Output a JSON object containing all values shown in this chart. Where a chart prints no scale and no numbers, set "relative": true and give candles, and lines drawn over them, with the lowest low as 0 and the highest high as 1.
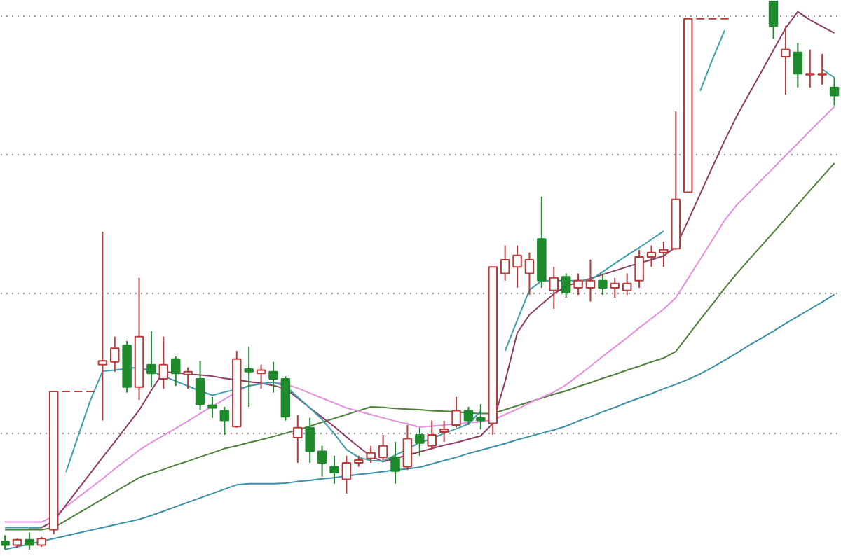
{
  "chart_data": {
    "type": "candlestick",
    "relative": true,
    "grid": "y",
    "categories": [
      null,
      null,
      null,
      null,
      null,
      null,
      null,
      null,
      null,
      null,
      null,
      null,
      null,
      null,
      null,
      null,
      null,
      null,
      null,
      null,
      null,
      null,
      null,
      null,
      null,
      null,
      null,
      null,
      null,
      null,
      null,
      null,
      null,
      null,
      null,
      null,
      null,
      null,
      null,
      null,
      null,
      null,
      null,
      null,
      null,
      null,
      null,
      null,
      null,
      null,
      null,
      null,
      null,
      null,
      null,
      null,
      null,
      null,
      null,
      null,
      null,
      null,
      null,
      null,
      null,
      null,
      null,
      null,
      null
    ],
    "ohlc": [
      [
        0.015,
        0.026,
        0,
        0.008
      ],
      [
        0.008,
        0.02,
        0.003,
        0.018
      ],
      [
        0.018,
        0.031,
        0,
        0.008
      ],
      [
        0.008,
        0.023,
        0.005,
        0.02
      ],
      [
        0.036,
        0.288,
        0.028,
        0.288
      ],
      [
        0.288,
        0.288,
        0.288,
        0.288
      ],
      [
        0.288,
        0.288,
        0.288,
        0.288
      ],
      [
        0.288,
        0.288,
        0.288,
        0.288
      ],
      [
        0.337,
        0.579,
        0.235,
        0.344
      ],
      [
        0.342,
        0.388,
        0.324,
        0.367
      ],
      [
        0.372,
        0.38,
        0.286,
        0.296
      ],
      [
        0.296,
        0.495,
        0.273,
        0.388
      ],
      [
        0.337,
        0.398,
        0.296,
        0.321
      ],
      [
        0.311,
        0.388,
        0.293,
        0.337
      ],
      [
        0.347,
        0.352,
        0.298,
        0.321
      ],
      [
        0.319,
        0.332,
        0.293,
        0.324
      ],
      [
        0.311,
        0.344,
        0.255,
        0.265
      ],
      [
        0.263,
        0.278,
        0.24,
        0.258
      ],
      [
        0.253,
        0.26,
        0.209,
        0.235
      ],
      [
        0.224,
        0.362,
        0.222,
        0.347
      ],
      [
        0.329,
        0.37,
        0.26,
        0.324
      ],
      [
        0.321,
        0.337,
        0.293,
        0.327
      ],
      [
        0.324,
        0.342,
        0.286,
        0.311
      ],
      [
        0.311,
        0.316,
        0.235,
        0.242
      ],
      [
        0.204,
        0.245,
        0.158,
        0.222
      ],
      [
        0.222,
        0.24,
        0.158,
        0.179
      ],
      [
        0.179,
        0.189,
        0.133,
        0.158
      ],
      [
        0.151,
        0.171,
        0.12,
        0.14
      ],
      [
        0.128,
        0.171,
        0.102,
        0.158
      ],
      [
        0.158,
        0.171,
        0.151,
        0.163
      ],
      [
        0.166,
        0.189,
        0.158,
        0.176
      ],
      [
        0.168,
        0.209,
        0.163,
        0.189
      ],
      [
        0.168,
        0.196,
        0.12,
        0.143
      ],
      [
        0.151,
        0.227,
        0.145,
        0.202
      ],
      [
        0.209,
        0.222,
        0.171,
        0.194
      ],
      [
        0.189,
        0.235,
        0.184,
        0.209
      ],
      [
        0.214,
        0.235,
        0.196,
        0.219
      ],
      [
        0.227,
        0.278,
        0.222,
        0.253
      ],
      [
        0.253,
        0.26,
        0.227,
        0.235
      ],
      [
        0.24,
        0.265,
        0.219,
        0.235
      ],
      [
        0.23,
        0.515,
        0.209,
        0.515
      ],
      [
        0.503,
        0.554,
        0.49,
        0.528
      ],
      [
        0.515,
        0.554,
        0.477,
        0.536
      ],
      [
        0.503,
        0.541,
        0.464,
        0.528
      ],
      [
        0.566,
        0.643,
        0.477,
        0.49
      ],
      [
        0.472,
        0.515,
        0.439,
        0.495
      ],
      [
        0.497,
        0.503,
        0.459,
        0.469
      ],
      [
        0.477,
        0.503,
        0.464,
        0.49
      ],
      [
        0.477,
        0.528,
        0.452,
        0.49
      ],
      [
        0.49,
        0.503,
        0.464,
        0.477
      ],
      [
        0.477,
        0.495,
        0.459,
        0.485
      ],
      [
        0.472,
        0.503,
        0.464,
        0.485
      ],
      [
        0.49,
        0.546,
        0.477,
        0.533
      ],
      [
        0.533,
        0.554,
        0.515,
        0.541
      ],
      [
        0.541,
        0.561,
        0.515,
        0.546
      ],
      [
        0.548,
        0.798,
        0.546,
        0.638
      ],
      [
        0.651,
        0.967,
        0.651,
        0.967
      ],
      [
        0.967,
        0.967,
        0.967,
        0.967
      ],
      [
        0.967,
        0.967,
        0.967,
        0.967
      ],
      [
        0.967,
        0.967,
        0.967,
        0.967
      ],
      null,
      null,
      null,
      [
        1,
        1,
        0.931,
        0.954
      ],
      [
        0.898,
        0.954,
        0.829,
        0.911
      ],
      [
        0.906,
        0.923,
        0.842,
        0.867
      ],
      [
        0.865,
        0.911,
        0.842,
        0.867
      ],
      [
        0.865,
        0.903,
        0.847,
        0.867
      ],
      [
        0.842,
        0.86,
        0.809,
        0.827
      ]
    ],
    "series": [
      {
        "type": "line",
        "color": "#3a8fa6",
        "values": [
          0,
          0.005,
          0.01,
          0.015,
          0.02,
          0.025,
          0.03,
          0.035,
          0.04,
          0.045,
          0.05,
          0.055,
          0.062,
          0.07,
          0.078,
          0.086,
          0.094,
          0.102,
          0.11,
          0.118,
          0.12,
          0.12,
          0.12,
          0.121,
          0.124,
          0.126,
          0.129,
          0.131,
          0.134,
          0.137,
          0.139,
          0.142,
          0.145,
          0.147,
          0.15,
          0.156,
          0.162,
          0.168,
          0.175,
          0.181,
          0.187,
          0.193,
          0.2,
          0.206,
          0.212,
          0.218,
          0.225,
          0.234,
          0.242,
          0.251,
          0.259,
          0.268,
          0.276,
          0.284,
          0.293,
          0.301,
          0.31,
          0.32,
          0.332,
          0.345,
          0.358,
          0.372,
          0.385,
          0.398,
          0.412,
          0.425,
          0.438,
          0.451,
          0.465
        ]
      },
      {
        "type": "line",
        "color": "#4f7f3c",
        "values": [
          0.036,
          0.036,
          0.036,
          0.036,
          0.04,
          0.053,
          0.066,
          0.079,
          0.092,
          0.105,
          0.118,
          0.131,
          0.139,
          0.146,
          0.154,
          0.161,
          0.169,
          0.176,
          0.184,
          0.189,
          0.195,
          0.2,
          0.206,
          0.212,
          0.218,
          0.225,
          0.232,
          0.239,
          0.246,
          0.253,
          0.26,
          0.259,
          0.257,
          0.256,
          0.255,
          0.253,
          0.252,
          0.251,
          0.249,
          0.248,
          0.248,
          0.255,
          0.262,
          0.269,
          0.276,
          0.283,
          0.289,
          0.297,
          0.304,
          0.312,
          0.319,
          0.327,
          0.334,
          0.342,
          0.349,
          0.361,
          0.39,
          0.419,
          0.447,
          0.476,
          0.503,
          0.528,
          0.553,
          0.578,
          0.603,
          0.629,
          0.654,
          0.679,
          0.704
        ]
      },
      {
        "type": "line",
        "color": "#e58fe0",
        "values": [
          0.05,
          0.05,
          0.05,
          0.05,
          0.061,
          0.078,
          0.095,
          0.112,
          0.129,
          0.147,
          0.164,
          0.181,
          0.195,
          0.208,
          0.221,
          0.234,
          0.248,
          0.261,
          0.274,
          0.287,
          0.299,
          0.302,
          0.305,
          0.302,
          0.294,
          0.285,
          0.276,
          0.267,
          0.258,
          0.252,
          0.246,
          0.24,
          0.234,
          0.229,
          0.223,
          0.225,
          0.227,
          0.229,
          0.231,
          0.233,
          0.236,
          0.246,
          0.256,
          0.267,
          0.277,
          0.287,
          0.3,
          0.317,
          0.334,
          0.352,
          0.369,
          0.386,
          0.404,
          0.421,
          0.438,
          0.459,
          0.494,
          0.529,
          0.564,
          0.6,
          0.628,
          0.65,
          0.673,
          0.695,
          0.718,
          0.74,
          0.763,
          0.785,
          0.807
        ]
      },
      {
        "type": "line",
        "color": "#8e3b66",
        "values": [
          null,
          null,
          0.04,
          0.04,
          0.052,
          0.081,
          0.11,
          0.139,
          0.168,
          0.196,
          0.225,
          0.254,
          0.29,
          0.324,
          0.322,
          0.32,
          0.318,
          0.316,
          0.312,
          0.309,
          0.306,
          0.303,
          0.299,
          0.293,
          0.276,
          0.258,
          0.241,
          0.224,
          0.205,
          0.187,
          0.17,
          0.16,
          0.166,
          0.172,
          0.178,
          0.184,
          0.19,
          0.195,
          0.201,
          0.207,
          0.23,
          0.306,
          0.395,
          0.428,
          0.447,
          0.466,
          0.48,
          0.487,
          0.494,
          0.501,
          0.508,
          0.515,
          0.522,
          0.528,
          0.535,
          0.551,
          0.599,
          0.648,
          0.697,
          0.745,
          0.79,
          0.83,
          0.87,
          0.91,
          0.95,
          0.98,
          0.965,
          0.953,
          0.941
        ]
      },
      {
        "type": "line",
        "color": "#3d9fa8",
        "values": [
          0.04,
          0.04,
          0.04,
          0.04,
          null,
          0.141,
          0.207,
          0.272,
          0.325,
          0.327,
          0.33,
          0.332,
          0.325,
          0.316,
          0.307,
          0.298,
          0.289,
          0.281,
          0.287,
          0.292,
          0.298,
          0.302,
          0.305,
          0.298,
          0.278,
          0.258,
          0.237,
          0.211,
          0.182,
          0.168,
          0.162,
          0.161,
          0.172,
          0.183,
          0.195,
          0.202,
          0.212,
          0.22,
          0.229,
          0.252,
          null,
          0.362,
          0.418,
          0.473,
          0.49,
          0.49,
          0.49,
          0.49,
          0.491,
          0.506,
          0.521,
          0.536,
          0.55,
          0.565,
          0.58,
          null,
          null,
          0.836,
          0.893,
          0.946,
          null,
          null,
          null,
          null,
          null,
          null,
          null,
          0.875,
          0.86
        ]
      }
    ],
    "colors": [
      "#1f8a2c",
      "#b83a3a",
      "#1f8a2c",
      "#b83a3a",
      "#b83a3a",
      "#b83a3a",
      "#b83a3a",
      "#b83a3a",
      "#b83a3a",
      "#b83a3a",
      "#1f8a2c",
      "#b83a3a",
      "#1f8a2c",
      "#b83a3a",
      "#1f8a2c",
      "#b83a3a",
      "#1f8a2c",
      "#1f8a2c",
      "#1f8a2c",
      "#b83a3a",
      "#1f8a2c",
      "#b83a3a",
      "#1f8a2c",
      "#1f8a2c",
      "#b83a3a",
      "#1f8a2c",
      "#1f8a2c",
      "#1f8a2c",
      "#b83a3a",
      "#b83a3a",
      "#b83a3a",
      "#b83a3a",
      "#1f8a2c",
      "#b83a3a",
      "#1f8a2c",
      "#b83a3a",
      "#b83a3a",
      "#b83a3a",
      "#1f8a2c",
      "#1f8a2c",
      "#b83a3a",
      "#b83a3a",
      "#b83a3a",
      "#b83a3a",
      "#1f8a2c",
      "#b83a3a",
      "#1f8a2c",
      "#b83a3a",
      "#b83a3a",
      "#1f8a2c",
      "#b83a3a",
      "#b83a3a",
      "#b83a3a",
      "#b83a3a",
      "#b83a3a",
      "#b83a3a",
      "#b83a3a",
      "#b83a3a",
      "#b83a3a",
      "#b83a3a",
      null,
      null,
      null,
      "#1f8a2c",
      "#b83a3a",
      "#1f8a2c",
      "#b83a3a",
      "#b83a3a",
      "#1f8a2c"
    ]
  }
}
